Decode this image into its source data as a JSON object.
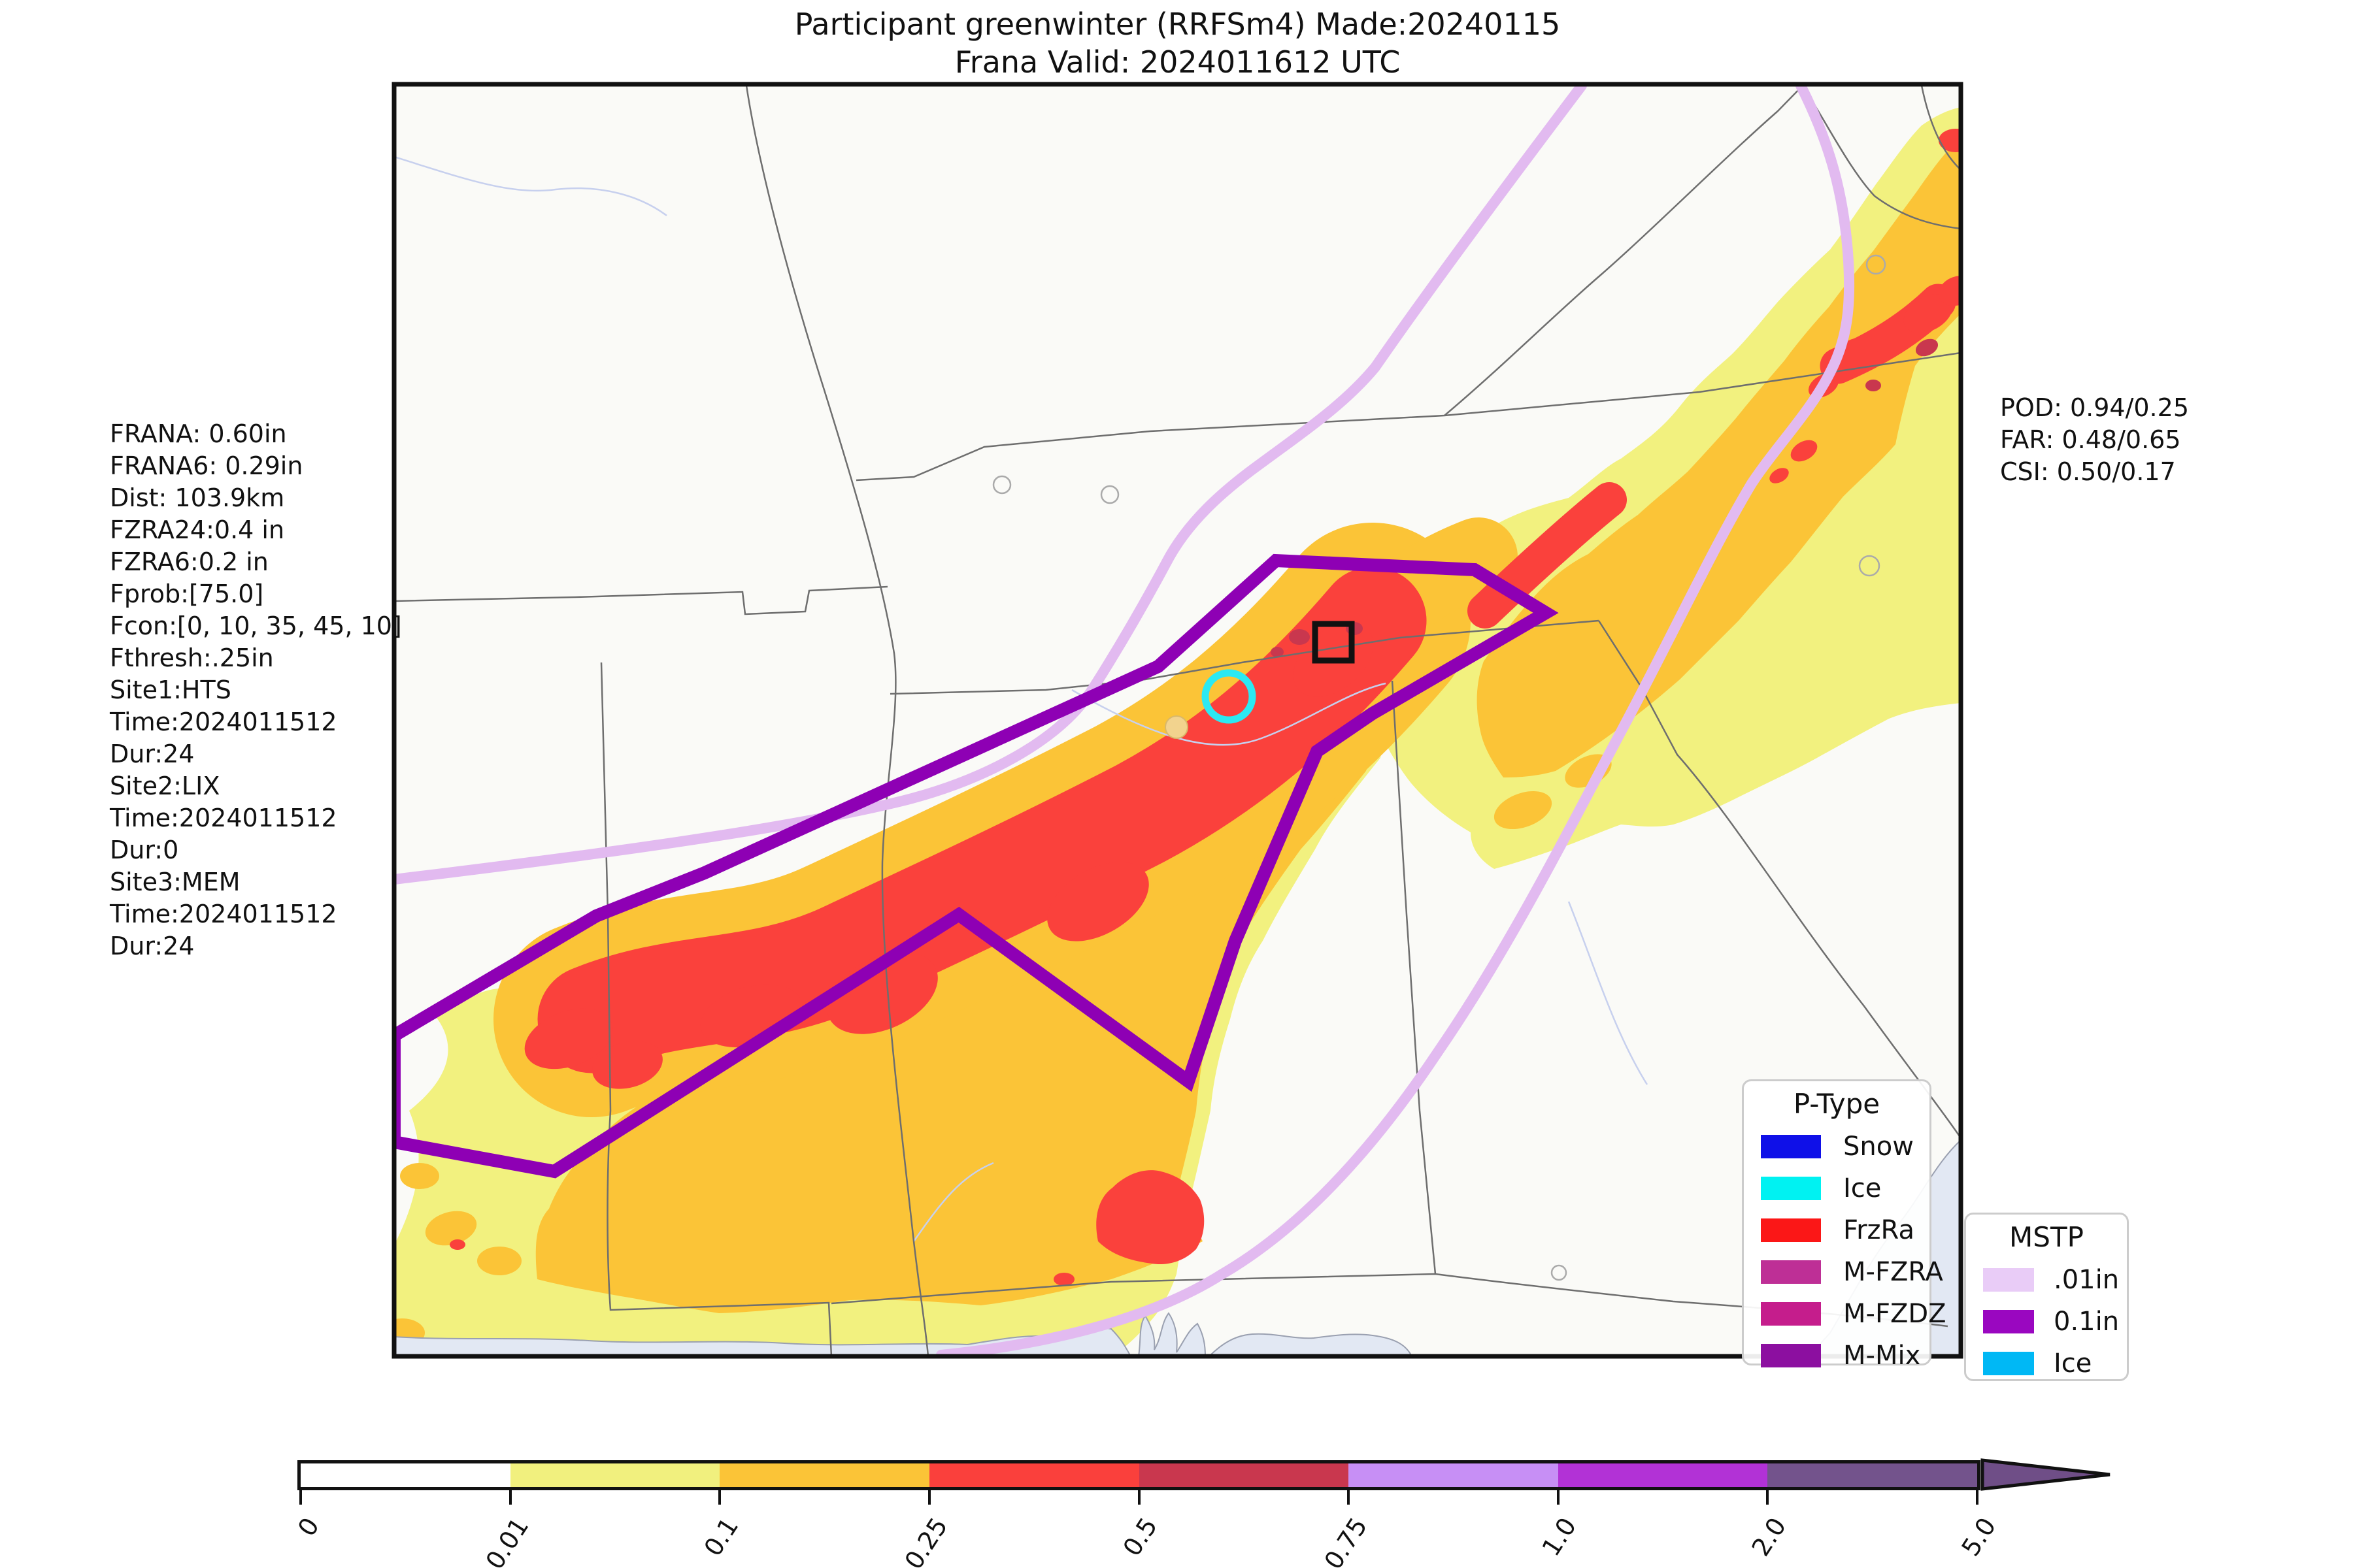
{
  "title": {
    "line1": "Participant greenwinter (RRFSm4) Made:20240115",
    "line2": "Frana Valid: 2024011612 UTC"
  },
  "annotations": {
    "lines": [
      "FRANA: 0.60in",
      "FRANA6: 0.29in",
      "Dist: 103.9km",
      "FZRA24:0.4 in",
      "FZRA6:0.2 in",
      "Fprob:[75.0]",
      "Fcon:[0, 10, 35, 45, 10]",
      "Fthresh:.25in",
      "Site1:HTS",
      "Time:2024011512",
      "Dur:24",
      "Site2:LIX",
      "Time:2024011512",
      "Dur:0",
      "Site3:MEM",
      "Time:2024011512",
      "Dur:24"
    ]
  },
  "stats": {
    "lines": [
      "POD: 0.94/0.25",
      "FAR: 0.48/0.65",
      "CSI: 0.50/0.17"
    ]
  },
  "legends": {
    "ptype": {
      "title": "P-Type",
      "entries": [
        {
          "label": "Snow",
          "color": "#0f10e8"
        },
        {
          "label": "Ice",
          "color": "#00f2f2"
        },
        {
          "label": "FrzRa",
          "color": "#fb1717"
        },
        {
          "label": "M-FZRA",
          "color": "#be2f96"
        },
        {
          "label": "M-FZDZ",
          "color": "#c51d8c"
        },
        {
          "label": "M-Mix",
          "color": "#8c0fa0"
        }
      ]
    },
    "mstp": {
      "title": "MSTP",
      "entries": [
        {
          "label": ".01in",
          "color": "#e9ccf7"
        },
        {
          "label": "0.1in",
          "color": "#9a07c0"
        },
        {
          "label": "Ice",
          "color": "#00b8f5"
        }
      ]
    }
  },
  "colorbar": {
    "tick_labels": [
      "0",
      "0.01",
      "0.1",
      "0.25",
      "0.5",
      "0.75",
      "1.0",
      "2.0",
      "5.0"
    ],
    "segment_colors": [
      "#ffffff",
      "#f1f07e",
      "#fbc437",
      "#fa403c",
      "#c9374e",
      "#c78ff5",
      "#b232d6",
      "#73538c"
    ],
    "arrow_color": "#6f4e87"
  },
  "map": {
    "colors": {
      "land": "#fafaf7",
      "water": "#e2e8f3",
      "state_border": "#6e6e6e",
      "river": "#c7d0ee",
      "precip_light": "#f2f17f",
      "precip_moderate": "#fbc437",
      "precip_heavy": "#fa413c",
      "precip_intense": "#c9374e",
      "contour_trace": "#e2baf0",
      "contour_main": "#8e00b4",
      "site_circle": "#2be9f2",
      "site_square": "#111111"
    },
    "markers": [
      {
        "name": "site-circle-marker",
        "shape": "circle",
        "color": "#2be9f2"
      },
      {
        "name": "site-square-marker",
        "shape": "square",
        "color": "#111111"
      }
    ]
  }
}
